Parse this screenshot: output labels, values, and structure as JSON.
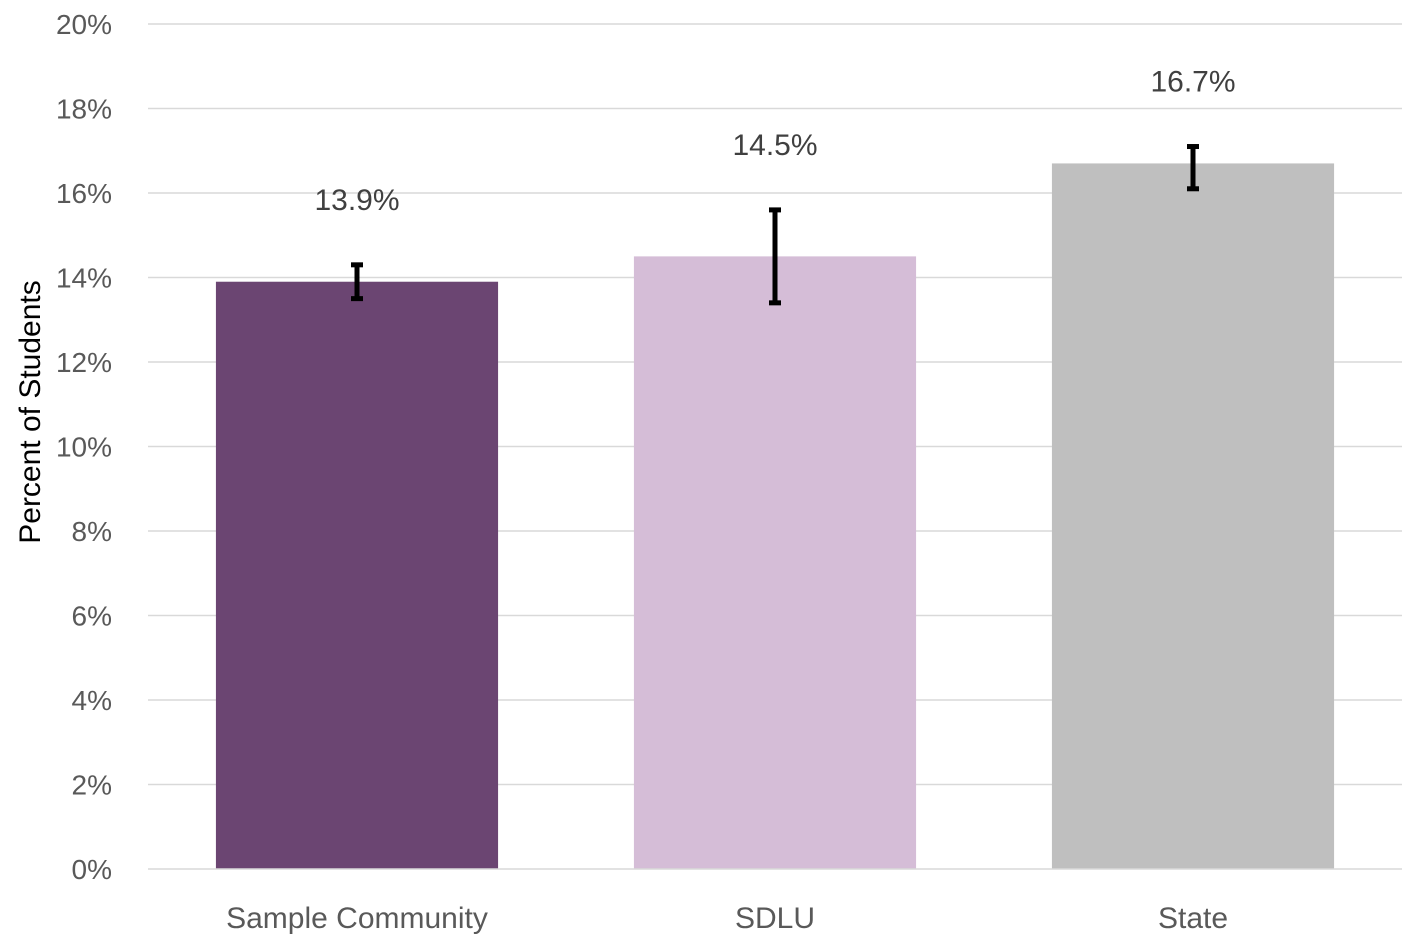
{
  "chart_data": {
    "type": "bar",
    "categories": [
      "Sample Community",
      "SDLU",
      "State"
    ],
    "values": [
      13.9,
      14.5,
      16.7
    ],
    "data_labels": [
      "13.9%",
      "14.5%",
      "16.7%"
    ],
    "error_bars": [
      {
        "low": 13.5,
        "high": 14.3
      },
      {
        "low": 13.4,
        "high": 15.6
      },
      {
        "low": 16.1,
        "high": 17.1
      }
    ],
    "colors": [
      "#6b4572",
      "#d5bdd7",
      "#bfbfbf"
    ],
    "title": "",
    "xlabel": "",
    "ylabel": "Percent of Students",
    "ylim": [
      0,
      20
    ],
    "y_tick_values": [
      0,
      2,
      4,
      6,
      8,
      10,
      12,
      14,
      16,
      18,
      20
    ],
    "y_tick_labels": [
      "0%",
      "2%",
      "4%",
      "6%",
      "8%",
      "10%",
      "12%",
      "14%",
      "16%",
      "18%",
      "20%"
    ],
    "grid": true,
    "legend": "none"
  }
}
